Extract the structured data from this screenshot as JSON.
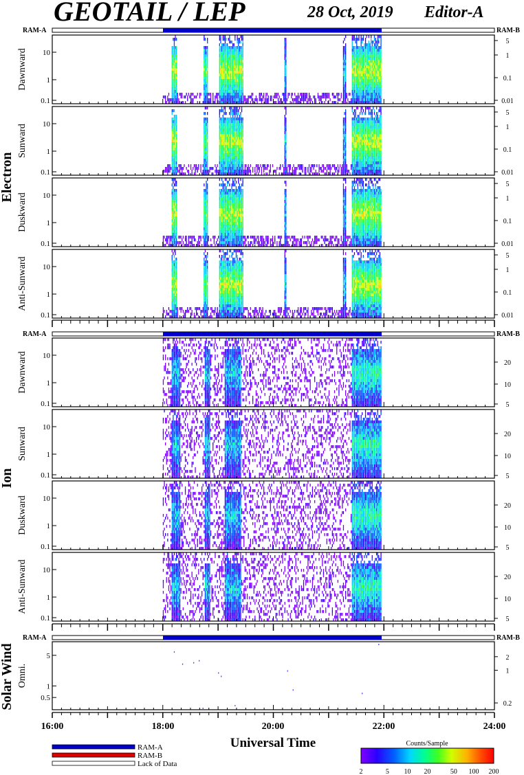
{
  "header": {
    "title": "GEOTAIL / LEP",
    "date": "28 Oct, 2019",
    "editor": "Editor-A"
  },
  "groups": {
    "electron": "Electron",
    "ion": "Ion",
    "solar_wind": "Solar Wind"
  },
  "ram_labels": {
    "left": "RAM-A",
    "right": "RAM-B"
  },
  "legend": {
    "ram_a": "RAM-A",
    "ram_b": "RAM-B",
    "lack": "Lack of Data",
    "colorbar_title": "Counts/Sample",
    "colorbar_ticks": [
      "2",
      "5",
      "10",
      "20",
      "50",
      "100",
      "200"
    ]
  },
  "colors": {
    "ram_a": "#0000c8",
    "ram_b": "#e00000",
    "scale": [
      "#8000ff",
      "#3000ff",
      "#0050ff",
      "#00c8ff",
      "#00ffa0",
      "#30ff30",
      "#c8ff00",
      "#ffc800",
      "#ff6000",
      "#ff0000"
    ]
  },
  "chart_data": {
    "type": "heatmap",
    "xlabel": "Universal Time",
    "x_ticks": [
      "16:00",
      "18:00",
      "20:00",
      "22:00",
      "24:00"
    ],
    "xlim_hours": [
      16,
      24
    ],
    "data_coverage_hours": [
      18.0,
      21.95
    ],
    "ram_a_coverage_hours": [
      18.0,
      21.95
    ],
    "panels": [
      {
        "name": "Dawnward",
        "group": "Electron",
        "left_ticks": [
          "10",
          "1",
          "0.1"
        ],
        "right_ticks": [
          "5",
          "1",
          "0.1",
          "0.01"
        ]
      },
      {
        "name": "Sunward",
        "group": "Electron",
        "left_ticks": [
          "10",
          "1",
          "0.1"
        ],
        "right_ticks": [
          "5",
          "1",
          "0.1",
          "0.01"
        ]
      },
      {
        "name": "Duskward",
        "group": "Electron",
        "left_ticks": [
          "10",
          "1",
          "0.1"
        ],
        "right_ticks": [
          "5",
          "1",
          "0.1",
          "0.01"
        ]
      },
      {
        "name": "Anti-Sunward",
        "group": "Electron",
        "left_ticks": [
          "10",
          "1",
          "0.1"
        ],
        "right_ticks": [
          "5",
          "1",
          "0.1",
          "0.01"
        ]
      },
      {
        "name": "Dawnward",
        "group": "Ion",
        "left_ticks": [
          "10",
          "1",
          "0.1"
        ],
        "right_ticks": [
          "20",
          "10",
          "5"
        ]
      },
      {
        "name": "Sunward",
        "group": "Ion",
        "left_ticks": [
          "10",
          "1",
          "0.1"
        ],
        "right_ticks": [
          "20",
          "10",
          "5"
        ]
      },
      {
        "name": "Duskward",
        "group": "Ion",
        "left_ticks": [
          "10",
          "1",
          "0.1"
        ],
        "right_ticks": [
          "20",
          "10",
          "5"
        ]
      },
      {
        "name": "Anti-Sunward",
        "group": "Ion",
        "left_ticks": [
          "10",
          "1",
          "0.1"
        ],
        "right_ticks": [
          "20",
          "10",
          "5"
        ]
      },
      {
        "name": "Omni.",
        "group": "Solar Wind",
        "left_ticks": [
          "5",
          "1",
          "0.5"
        ],
        "right_ticks": [
          "2",
          "1",
          "0.2"
        ]
      }
    ],
    "electron_bursts_hours": [
      {
        "start": 18.15,
        "end": 18.25,
        "level": 6
      },
      {
        "start": 18.72,
        "end": 18.8,
        "level": 5
      },
      {
        "start": 19.0,
        "end": 19.45,
        "level": 6
      },
      {
        "start": 20.18,
        "end": 20.22,
        "level": 3
      },
      {
        "start": 21.25,
        "end": 21.3,
        "level": 3
      },
      {
        "start": 21.4,
        "end": 21.95,
        "level": 6
      }
    ],
    "ion_bursts_hours": [
      {
        "start": 18.15,
        "end": 18.3,
        "level": 3
      },
      {
        "start": 18.75,
        "end": 18.85,
        "level": 3
      },
      {
        "start": 19.1,
        "end": 19.4,
        "level": 3
      },
      {
        "start": 21.4,
        "end": 21.95,
        "level": 4
      }
    ]
  }
}
